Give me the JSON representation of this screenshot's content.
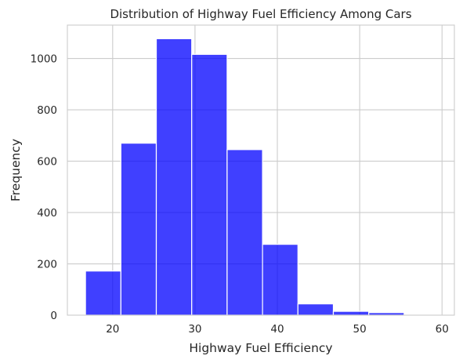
{
  "chart_data": {
    "type": "bar",
    "title": "Distribution of Highway Fuel Efficiency Among Cars",
    "xlabel": "Highway Fuel Efficiency",
    "ylabel": "Frequency",
    "xlim": [
      14.5,
      61.5
    ],
    "ylim": [
      0,
      1130
    ],
    "xticks": [
      20,
      30,
      40,
      50,
      60
    ],
    "yticks": [
      0,
      200,
      400,
      600,
      800,
      1000
    ],
    "grid": true,
    "bar_color": "#0000ff",
    "bins": [
      {
        "x0": 16.7,
        "x1": 21.0,
        "value": 172
      },
      {
        "x0": 21.0,
        "x1": 25.3,
        "value": 670
      },
      {
        "x0": 25.3,
        "x1": 29.6,
        "value": 1077
      },
      {
        "x0": 29.6,
        "x1": 33.9,
        "value": 1016
      },
      {
        "x0": 33.9,
        "x1": 38.2,
        "value": 645
      },
      {
        "x0": 38.2,
        "x1": 42.5,
        "value": 276
      },
      {
        "x0": 42.5,
        "x1": 46.8,
        "value": 44
      },
      {
        "x0": 46.8,
        "x1": 51.1,
        "value": 15
      },
      {
        "x0": 51.1,
        "x1": 55.4,
        "value": 10
      },
      {
        "x0": 55.4,
        "x1": 59.7,
        "value": 2
      }
    ]
  }
}
